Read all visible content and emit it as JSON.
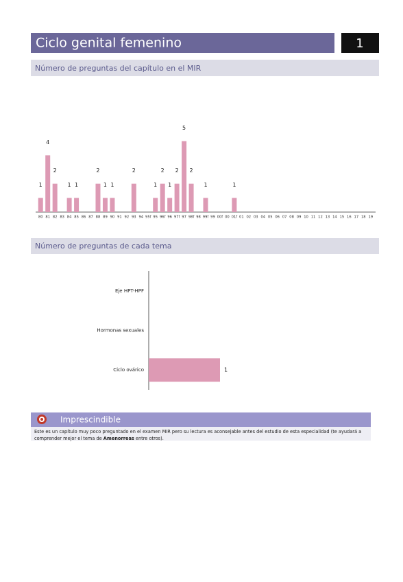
{
  "header": {
    "title": "Ciclo genital femenino",
    "number": "1"
  },
  "sections": [
    "Número de preguntas del capítulo en el MIR",
    "Número de preguntas de cada tema"
  ],
  "chart_data": [
    {
      "type": "bar",
      "color": "#dd9ab4",
      "ylim": [
        0,
        6
      ],
      "categories": [
        "80",
        "81",
        "82",
        "83",
        "84",
        "85",
        "86",
        "87",
        "88",
        "89",
        "90",
        "91",
        "92",
        "93",
        "94",
        "95f",
        "95",
        "96f",
        "96",
        "97f",
        "97",
        "98f",
        "98",
        "99f",
        "99",
        "00f",
        "00",
        "01f",
        "01",
        "02",
        "03",
        "04",
        "05",
        "06",
        "07",
        "08",
        "09",
        "10",
        "11",
        "12",
        "13",
        "14",
        "15",
        "16",
        "17",
        "18",
        "19"
      ],
      "values": [
        1,
        4,
        2,
        0,
        1,
        1,
        0,
        0,
        2,
        1,
        1,
        0,
        0,
        2,
        0,
        0,
        1,
        2,
        1,
        2,
        5,
        2,
        0,
        1,
        0,
        0,
        0,
        1,
        0,
        0,
        0,
        0,
        0,
        0,
        0,
        0,
        0,
        0,
        0,
        0,
        0,
        0,
        0,
        0,
        0,
        0,
        0
      ]
    },
    {
      "type": "hbar",
      "color": "#dd9ab4",
      "xlim": [
        0,
        1
      ],
      "categories": [
        "Eje HPT-HPF",
        "Hormonas sexuales",
        "Ciclo ovárico"
      ],
      "values": [
        0,
        0,
        1
      ]
    }
  ],
  "callout": {
    "title": "Imprescindible",
    "text": [
      "Este es un capítulo muy poco preguntado en el examen MIR pero su lectura es aconsejable antes del estudio de esta especialidad (te ayudará a comprender mejor el tema de ",
      "Amenorreas",
      " entre otros)."
    ]
  }
}
